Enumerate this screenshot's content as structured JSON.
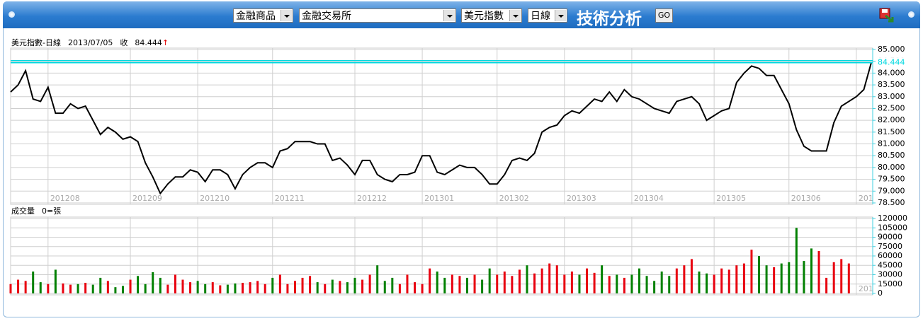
{
  "toolbar": {
    "selects": [
      "金融商品",
      "金融交易所",
      "美元指數",
      "日線"
    ],
    "title": "技術分析",
    "button": "GO"
  },
  "chart_data": [
    {
      "type": "line",
      "title": "美元指數-日線",
      "date": "2013/07/05",
      "close_label": "收",
      "close": 84.444,
      "trend_marker": "↑",
      "color": "#000000",
      "reference_color": "#00d8e0",
      "trend_color": "#e00000",
      "grid": true,
      "values": [
        83.2,
        83.5,
        84.1,
        82.9,
        82.8,
        83.4,
        82.3,
        82.3,
        82.7,
        82.5,
        82.6,
        82.0,
        81.4,
        81.7,
        81.5,
        81.2,
        81.3,
        81.1,
        80.2,
        79.6,
        78.9,
        79.3,
        79.6,
        79.6,
        79.9,
        79.8,
        79.4,
        79.9,
        79.9,
        79.7,
        79.1,
        79.7,
        80.0,
        80.2,
        80.2,
        80.0,
        80.7,
        80.8,
        81.1,
        81.1,
        81.1,
        81.0,
        81.0,
        80.3,
        80.4,
        80.1,
        79.7,
        80.3,
        80.3,
        79.7,
        79.5,
        79.4,
        79.7,
        79.7,
        79.8,
        80.5,
        80.5,
        79.8,
        79.7,
        79.9,
        80.1,
        80.0,
        80.0,
        79.7,
        79.3,
        79.3,
        79.7,
        80.3,
        80.4,
        80.3,
        80.6,
        81.5,
        81.7,
        81.8,
        82.2,
        82.4,
        82.3,
        82.6,
        82.9,
        82.8,
        83.2,
        82.8,
        83.3,
        83.0,
        82.9,
        82.7,
        82.5,
        82.4,
        82.3,
        82.8,
        82.9,
        83.0,
        82.7,
        82.0,
        82.2,
        82.4,
        82.5,
        83.6,
        84.0,
        84.3,
        84.2,
        83.9,
        83.9,
        83.3,
        82.7,
        81.6,
        80.9,
        80.7,
        80.7,
        80.7,
        81.9,
        82.6,
        82.8,
        83.0,
        83.3,
        84.444
      ],
      "xlim": [
        0,
        115
      ],
      "xticks": [
        {
          "value": 5,
          "label": "201208"
        },
        {
          "value": 16,
          "label": "201209"
        },
        {
          "value": 25,
          "label": "201210"
        },
        {
          "value": 35,
          "label": "201211"
        },
        {
          "value": 46,
          "label": "201212"
        },
        {
          "value": 55,
          "label": "201301"
        },
        {
          "value": 65,
          "label": "201302"
        },
        {
          "value": 74,
          "label": "201303"
        },
        {
          "value": 83,
          "label": "201304"
        },
        {
          "value": 94,
          "label": "201305"
        },
        {
          "value": 104,
          "label": "201306"
        },
        {
          "value": 113,
          "label": "201"
        }
      ],
      "ylim": [
        78.5,
        85
      ],
      "yticks": [
        {
          "value": 85,
          "label": "85.000"
        },
        {
          "value": 84.5,
          "label": "84.500"
        },
        {
          "value": 84,
          "label": "84.000"
        },
        {
          "value": 83.5,
          "label": "83.500"
        },
        {
          "value": 83,
          "label": "83.000"
        },
        {
          "value": 82.5,
          "label": "82.500"
        },
        {
          "value": 82,
          "label": "82.000"
        },
        {
          "value": 81.5,
          "label": "81.500"
        },
        {
          "value": 81,
          "label": "81.000"
        },
        {
          "value": 80.5,
          "label": "80.500"
        },
        {
          "value": 80,
          "label": "80.000"
        },
        {
          "value": 79.5,
          "label": "79.500"
        },
        {
          "value": 79,
          "label": "79.000"
        },
        {
          "value": 78.5,
          "label": "78.500"
        }
      ]
    },
    {
      "type": "bar",
      "title": "成交量",
      "subtitle": "0=張",
      "up_color": "#e8000f",
      "down_color": "#008000",
      "grid": true,
      "values": [
        15000,
        22000,
        20000,
        35000,
        18000,
        15000,
        38000,
        16000,
        14000,
        15000,
        17000,
        14000,
        25000,
        20000,
        10000,
        12000,
        22000,
        28000,
        15000,
        34000,
        25000,
        14000,
        30000,
        22000,
        18000,
        20000,
        15000,
        18000,
        13000,
        14000,
        16000,
        17000,
        18000,
        20000,
        15000,
        25000,
        30000,
        15000,
        20000,
        25000,
        28000,
        18000,
        15000,
        22000,
        20000,
        18000,
        25000,
        22000,
        30000,
        45000,
        20000,
        25000,
        15000,
        30000,
        18000,
        15000,
        40000,
        35000,
        25000,
        30000,
        28000,
        25000,
        30000,
        22000,
        40000,
        30000,
        35000,
        28000,
        38000,
        45000,
        32000,
        40000,
        48000,
        45000,
        30000,
        35000,
        30000,
        40000,
        33000,
        45000,
        28000,
        30000,
        25000,
        30000,
        40000,
        28000,
        20000,
        35000,
        28000,
        40000,
        45000,
        55000,
        35000,
        32000,
        30000,
        40000,
        38000,
        45000,
        48000,
        70000,
        60000,
        45000,
        42000,
        48000,
        50000,
        105000,
        52000,
        72000,
        68000,
        25000,
        50000,
        55000,
        48000,
        null,
        null,
        null
      ],
      "xlim": [
        0,
        115
      ],
      "xticks": [
        5,
        16,
        25,
        35,
        46,
        55,
        65,
        74,
        83,
        94,
        104,
        113
      ],
      "ylim": [
        0,
        120000
      ],
      "yticks": [
        120000,
        105000,
        90000,
        75000,
        60000,
        45000,
        30000,
        15000,
        0
      ]
    }
  ]
}
